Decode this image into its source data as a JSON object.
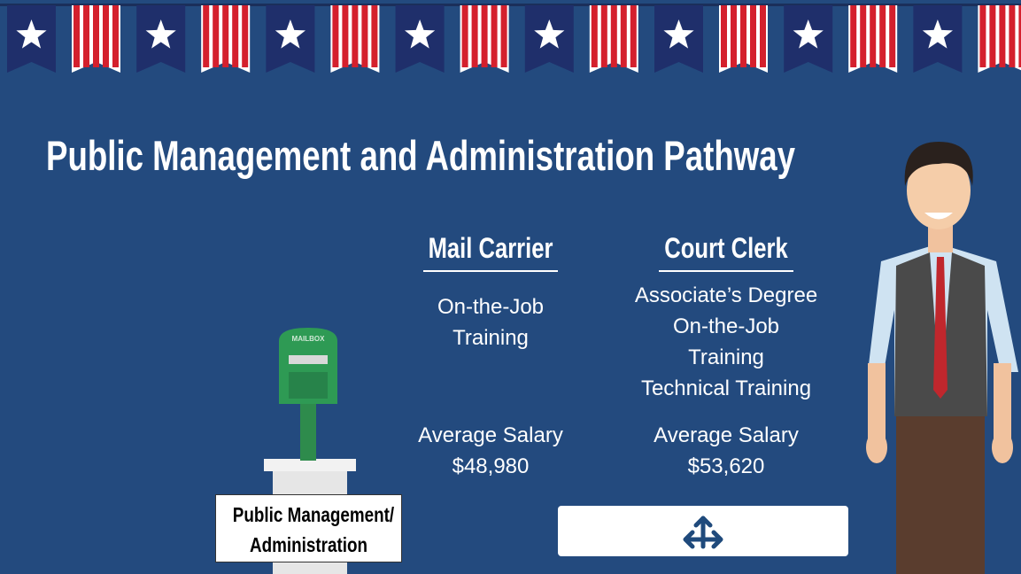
{
  "title": "Public Management and Administration Pathway",
  "careers": [
    {
      "name": "Mail Carrier",
      "details": [
        "On-the-Job",
        "Training"
      ],
      "salary_label": "Average Salary",
      "salary": "$48,980"
    },
    {
      "name": "Court Clerk",
      "details": [
        "Associate’s Degree",
        "On-the-Job",
        "Training",
        "Technical Training"
      ],
      "salary_label": "Average Salary",
      "salary": "$53,620"
    }
  ],
  "mailbox_label": "MAILBOX",
  "cluster_label": [
    "Public Management/",
    "Administration"
  ]
}
